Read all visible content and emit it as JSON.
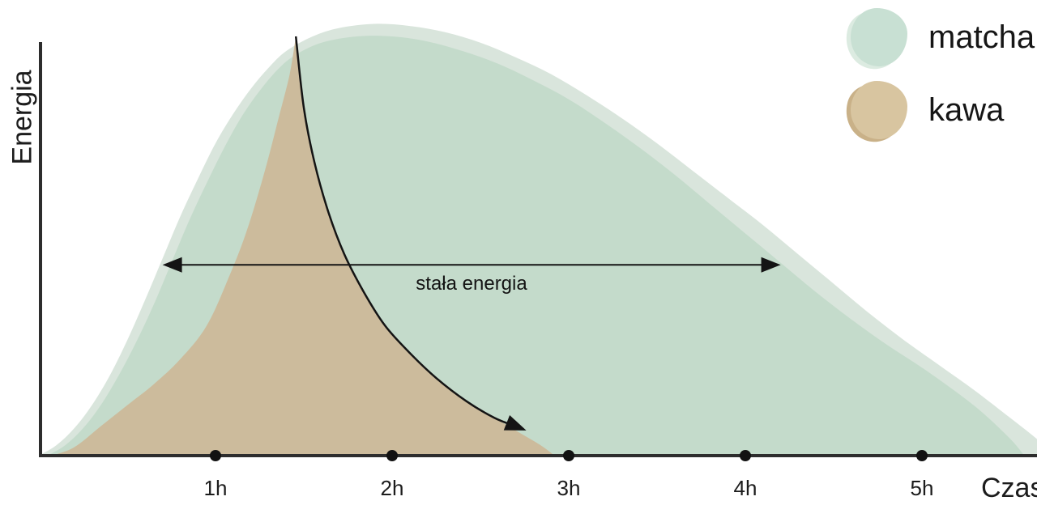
{
  "axes": {
    "y_label": "Energia",
    "x_label": "Czas",
    "color": "#2d2d2d",
    "dot_color": "#121212"
  },
  "legend": {
    "position": "top-right",
    "items": [
      {
        "label": "matcha",
        "color": "#c8e0d3",
        "back_color": "#dcebe1"
      },
      {
        "label": "kawa",
        "color": "#d8c5a0",
        "back_color": "#c9b188"
      }
    ]
  },
  "chart_data": {
    "type": "area",
    "title": "",
    "xlabel": "Czas",
    "ylabel": "Energia",
    "x_unit": "hours",
    "x_range": [
      0,
      5.8
    ],
    "y_range": [
      0,
      105
    ],
    "grid": false,
    "legend_position": "top-right",
    "x_ticks": [
      {
        "value": 1,
        "label": "1h"
      },
      {
        "value": 2,
        "label": "2h"
      },
      {
        "value": 3,
        "label": "3h"
      },
      {
        "value": 4,
        "label": "4h"
      },
      {
        "value": 5,
        "label": "5h"
      }
    ],
    "series": [
      {
        "name": "matcha-glow",
        "color": "#d9e5dc",
        "points": [
          [
            0.0,
            0
          ],
          [
            0.1,
            2.5
          ],
          [
            0.2,
            6.5
          ],
          [
            0.3,
            12
          ],
          [
            0.4,
            19
          ],
          [
            0.5,
            27.5
          ],
          [
            0.6,
            37
          ],
          [
            0.7,
            47
          ],
          [
            0.8,
            57
          ],
          [
            0.9,
            66
          ],
          [
            1.0,
            74.5
          ],
          [
            1.1,
            81.5
          ],
          [
            1.2,
            87.5
          ],
          [
            1.3,
            92.5
          ],
          [
            1.4,
            96.5
          ],
          [
            1.55,
            100
          ],
          [
            1.7,
            102
          ],
          [
            1.9,
            103
          ],
          [
            2.1,
            102.5
          ],
          [
            2.3,
            101
          ],
          [
            2.5,
            98.5
          ],
          [
            2.7,
            95
          ],
          [
            2.9,
            91
          ],
          [
            3.1,
            86
          ],
          [
            3.3,
            80.5
          ],
          [
            3.5,
            74.5
          ],
          [
            3.7,
            68
          ],
          [
            3.9,
            61.5
          ],
          [
            4.1,
            55
          ],
          [
            4.3,
            48
          ],
          [
            4.5,
            41
          ],
          [
            4.7,
            34
          ],
          [
            4.9,
            27.5
          ],
          [
            5.1,
            21.5
          ],
          [
            5.3,
            15.5
          ],
          [
            5.5,
            9
          ],
          [
            5.65,
            4
          ],
          [
            5.75,
            0
          ]
        ]
      },
      {
        "name": "matcha",
        "color": "#c4dbcb",
        "points": [
          [
            0.05,
            0
          ],
          [
            0.15,
            2.5
          ],
          [
            0.25,
            6.5
          ],
          [
            0.35,
            12
          ],
          [
            0.45,
            19
          ],
          [
            0.55,
            27
          ],
          [
            0.65,
            36
          ],
          [
            0.75,
            46
          ],
          [
            0.85,
            56
          ],
          [
            0.95,
            65
          ],
          [
            1.05,
            73.5
          ],
          [
            1.15,
            81
          ],
          [
            1.25,
            87
          ],
          [
            1.35,
            92
          ],
          [
            1.45,
            95.5
          ],
          [
            1.6,
            98.5
          ],
          [
            1.8,
            100
          ],
          [
            2.0,
            100
          ],
          [
            2.2,
            98.8
          ],
          [
            2.4,
            96.5
          ],
          [
            2.6,
            93.5
          ],
          [
            2.8,
            89.5
          ],
          [
            3.0,
            85
          ],
          [
            3.2,
            79.5
          ],
          [
            3.4,
            73.5
          ],
          [
            3.6,
            67
          ],
          [
            3.8,
            60
          ],
          [
            4.0,
            53
          ],
          [
            4.2,
            46
          ],
          [
            4.4,
            39
          ],
          [
            4.6,
            32.5
          ],
          [
            4.8,
            26.5
          ],
          [
            5.0,
            21
          ],
          [
            5.2,
            15
          ],
          [
            5.35,
            10
          ],
          [
            5.5,
            4
          ],
          [
            5.58,
            0
          ]
        ]
      },
      {
        "name": "kawa",
        "color": "#ccbb9c",
        "rise_points": [
          [
            0.07,
            0
          ],
          [
            0.2,
            2
          ],
          [
            0.35,
            7
          ],
          [
            0.5,
            12
          ],
          [
            0.65,
            17
          ],
          [
            0.8,
            23
          ],
          [
            0.95,
            31
          ],
          [
            1.08,
            43
          ],
          [
            1.18,
            54
          ],
          [
            1.28,
            68
          ],
          [
            1.36,
            81
          ],
          [
            1.42,
            91
          ],
          [
            1.455,
            100
          ]
        ],
        "decay_points": [
          [
            1.455,
            100
          ],
          [
            1.5,
            83
          ],
          [
            1.56,
            70
          ],
          [
            1.64,
            58
          ],
          [
            1.73,
            48
          ],
          [
            1.84,
            39
          ],
          [
            1.96,
            31
          ],
          [
            2.1,
            24.5
          ],
          [
            2.25,
            18.5
          ],
          [
            2.42,
            13
          ],
          [
            2.58,
            9
          ],
          [
            2.72,
            5.5
          ],
          [
            2.84,
            2.5
          ],
          [
            2.92,
            0
          ]
        ]
      }
    ],
    "annotations": [
      {
        "type": "double-arrow",
        "label": "stała energia",
        "energy": 45.5,
        "x_from": 0.7,
        "x_to": 4.2,
        "color": "#141414"
      },
      {
        "type": "curve-arrow",
        "follows": "kawa-decay",
        "color": "#141414",
        "points": [
          [
            1.455,
            100
          ],
          [
            1.5,
            83
          ],
          [
            1.56,
            70
          ],
          [
            1.64,
            58
          ],
          [
            1.73,
            48
          ],
          [
            1.84,
            39
          ],
          [
            1.96,
            31
          ],
          [
            2.1,
            24.5
          ],
          [
            2.25,
            18.5
          ],
          [
            2.42,
            13
          ],
          [
            2.58,
            9
          ],
          [
            2.7,
            7
          ]
        ]
      }
    ]
  }
}
